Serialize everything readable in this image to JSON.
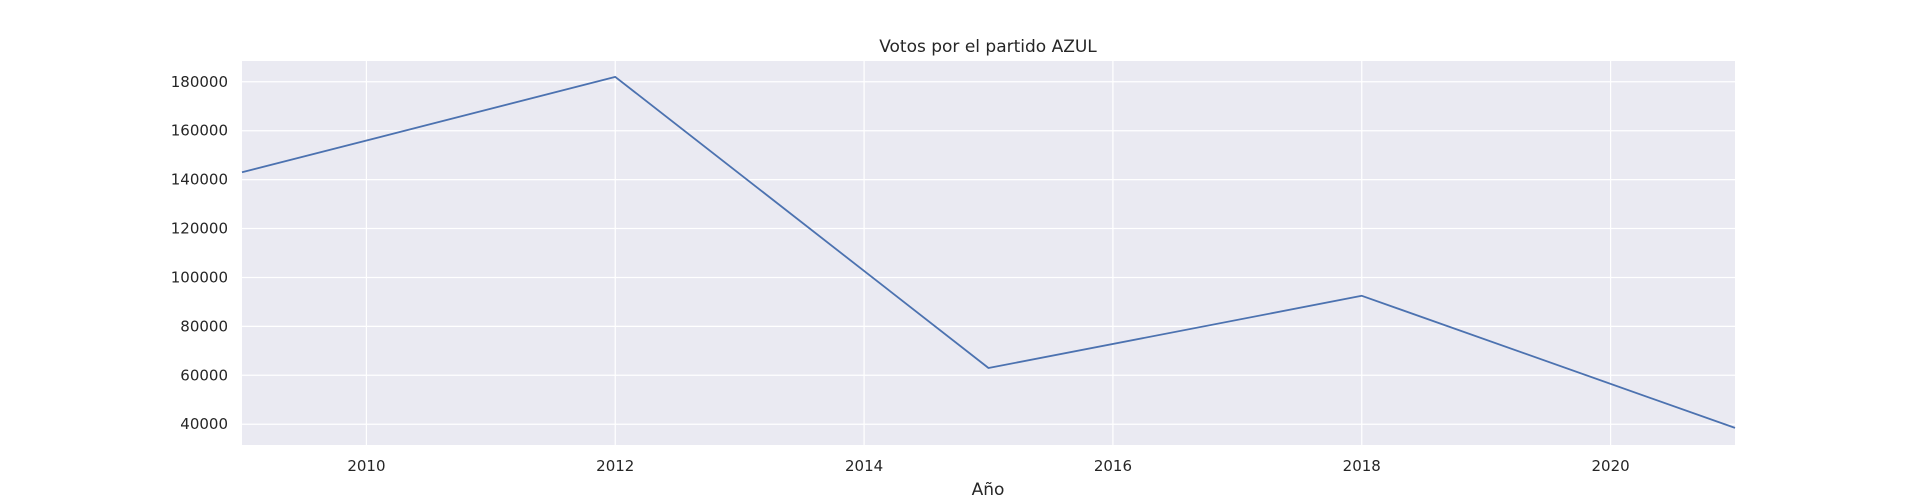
{
  "chart_data": {
    "type": "line",
    "title": "Votos por el partido AZUL",
    "xlabel": "Año",
    "ylabel": "",
    "x": [
      2009,
      2012,
      2015,
      2018,
      2021
    ],
    "series": [
      {
        "values": [
          143000,
          182000,
          63000,
          92500,
          38500
        ]
      }
    ],
    "xlim": [
      2009,
      2021
    ],
    "ylim": [
      31500,
      188500
    ],
    "xticks": [
      2010,
      2012,
      2014,
      2016,
      2018,
      2020
    ],
    "yticks": [
      40000,
      60000,
      80000,
      100000,
      120000,
      140000,
      160000,
      180000
    ],
    "grid": true,
    "colors": {
      "background": "#eaeaf2",
      "grid": "#ffffff",
      "line": "#4c72b0"
    }
  }
}
